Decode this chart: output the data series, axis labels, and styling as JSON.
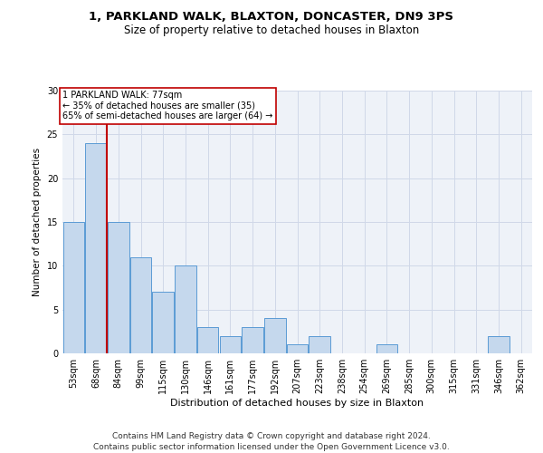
{
  "title1": "1, PARKLAND WALK, BLAXTON, DONCASTER, DN9 3PS",
  "title2": "Size of property relative to detached houses in Blaxton",
  "xlabel": "Distribution of detached houses by size in Blaxton",
  "ylabel": "Number of detached properties",
  "categories": [
    "53sqm",
    "68sqm",
    "84sqm",
    "99sqm",
    "115sqm",
    "130sqm",
    "146sqm",
    "161sqm",
    "177sqm",
    "192sqm",
    "207sqm",
    "223sqm",
    "238sqm",
    "254sqm",
    "269sqm",
    "285sqm",
    "300sqm",
    "315sqm",
    "331sqm",
    "346sqm",
    "362sqm"
  ],
  "values": [
    15,
    24,
    15,
    11,
    7,
    10,
    3,
    2,
    3,
    4,
    1,
    2,
    0,
    0,
    1,
    0,
    0,
    0,
    0,
    2,
    0
  ],
  "bar_color": "#c5d8ed",
  "bar_edge_color": "#5b9bd5",
  "vline_x": 1.5,
  "vline_color": "#c00000",
  "annotation_lines": [
    "1 PARKLAND WALK: 77sqm",
    "← 35% of detached houses are smaller (35)",
    "65% of semi-detached houses are larger (64) →"
  ],
  "annotation_box_color": "#c00000",
  "ylim": [
    0,
    30
  ],
  "yticks": [
    0,
    5,
    10,
    15,
    20,
    25,
    30
  ],
  "grid_color": "#d0d8e8",
  "bg_color": "#eef2f8",
  "footer": "Contains HM Land Registry data © Crown copyright and database right 2024.\nContains public sector information licensed under the Open Government Licence v3.0.",
  "title1_fontsize": 9.5,
  "title2_fontsize": 8.5,
  "xlabel_fontsize": 8,
  "ylabel_fontsize": 7.5,
  "tick_fontsize": 7,
  "annot_fontsize": 7,
  "footer_fontsize": 6.5
}
